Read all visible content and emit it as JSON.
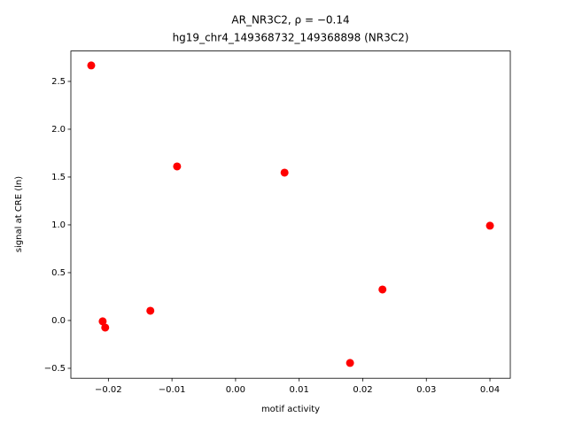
{
  "chart_data": {
    "type": "scatter",
    "title": "AR_NR3C2, ρ = −0.14",
    "subtitle": "hg19_chr4_149368732_149368898 (NR3C2)",
    "x_label": "motif activity",
    "y_label": "signal at CRE (ln)",
    "color": "#ff0000",
    "x": [
      -0.0227,
      -0.0092,
      0.0077,
      0.04,
      0.0231,
      -0.0134,
      -0.0209,
      -0.0205,
      0.018
    ],
    "values": [
      2.667,
      1.611,
      1.546,
      0.991,
      0.324,
      0.102,
      -0.009,
      -0.074,
      -0.444
    ],
    "xlim": [
      -0.0259,
      0.0432
    ],
    "ylim": [
      -0.604,
      2.818
    ],
    "xticks": [
      {
        "value": -0.02,
        "label": "−0.02"
      },
      {
        "value": -0.01,
        "label": "−0.01"
      },
      {
        "value": 0,
        "label": "0.00"
      },
      0.01,
      0.02,
      0.03,
      0.04
    ],
    "yticks": [
      {
        "value": -0.5,
        "label": "−0.5"
      },
      {
        "value": 0,
        "label": "0.0"
      },
      0.5,
      {
        "value": 1,
        "label": "1.0"
      },
      1.5,
      {
        "value": 2,
        "label": "2.0"
      },
      2.5
    ]
  }
}
